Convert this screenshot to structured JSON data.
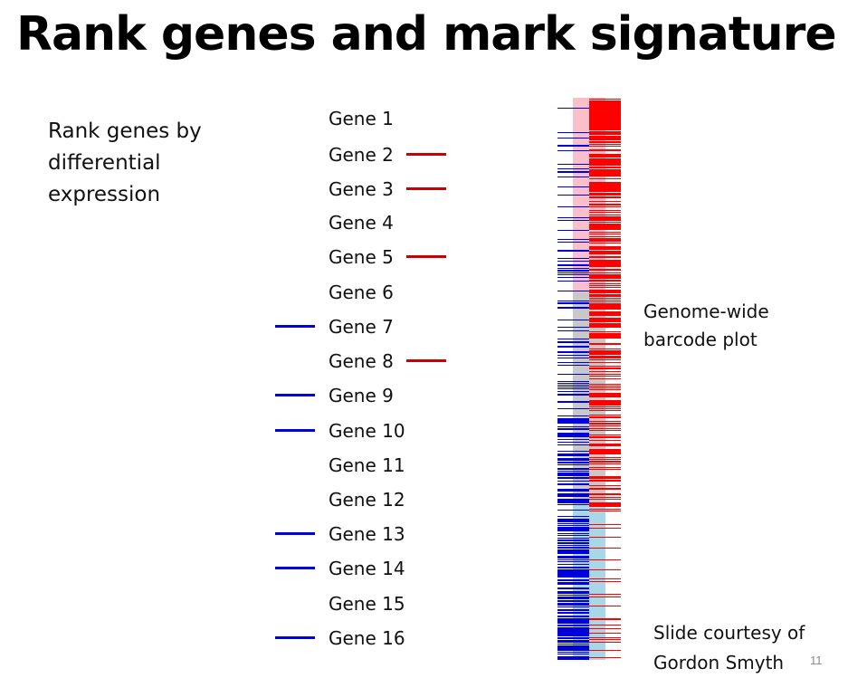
{
  "slide": {
    "title": "Rank genes and mark signature",
    "intro": "Rank genes by differential expression",
    "page_number": "11"
  },
  "gene_list": [
    {
      "label": "Gene 1",
      "mark": "none"
    },
    {
      "label": "Gene 2",
      "mark": "up"
    },
    {
      "label": "Gene 3",
      "mark": "up"
    },
    {
      "label": "Gene 4",
      "mark": "none"
    },
    {
      "label": "Gene 5",
      "mark": "up"
    },
    {
      "label": "Gene 6",
      "mark": "none"
    },
    {
      "label": "Gene 7",
      "mark": "down"
    },
    {
      "label": "Gene 8",
      "mark": "up"
    },
    {
      "label": "Gene 9",
      "mark": "down"
    },
    {
      "label": "Gene 10",
      "mark": "down"
    },
    {
      "label": "Gene 11",
      "mark": "none"
    },
    {
      "label": "Gene 12",
      "mark": "none"
    },
    {
      "label": "Gene 13",
      "mark": "down"
    },
    {
      "label": "Gene 14",
      "mark": "down"
    },
    {
      "label": "Gene 15",
      "mark": "none"
    },
    {
      "label": "Gene 16",
      "mark": "down"
    }
  ],
  "barcode": {
    "label": "Genome-wide barcode plot",
    "colors": {
      "up_bar": "#ff0000",
      "down_bar": "#0000dd",
      "up_region": "#f9c0cb",
      "neutral_region": "#c8c8c8",
      "down_region": "#a8d8e8"
    }
  },
  "credit": "Slide courtesy of Gordon Smyth"
}
